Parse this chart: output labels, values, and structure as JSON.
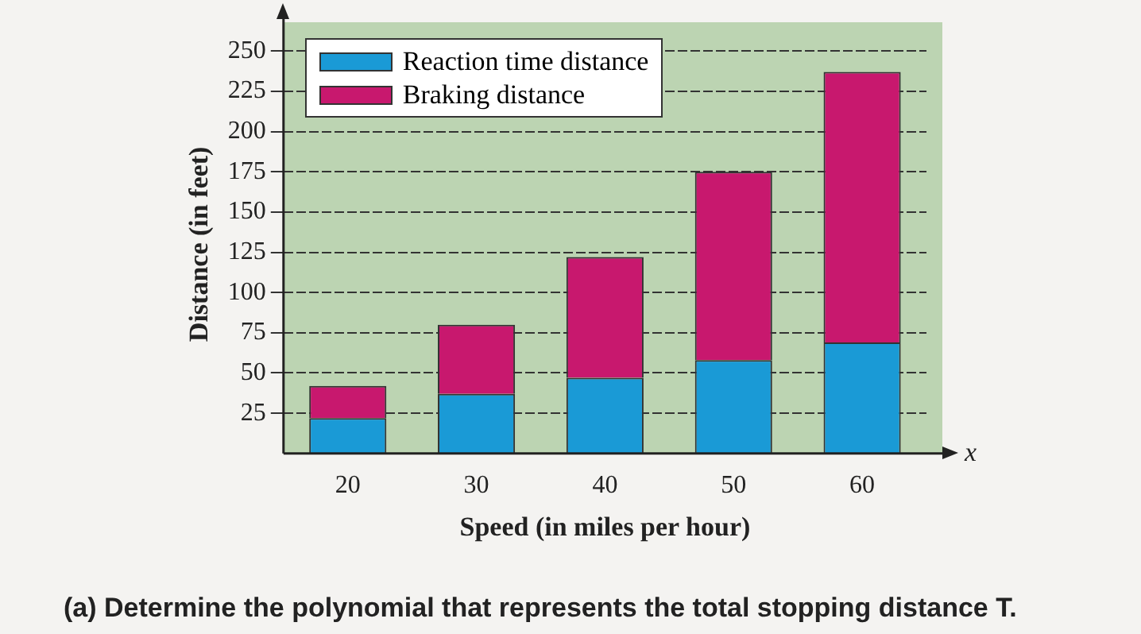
{
  "chart_data": {
    "type": "bar",
    "stacked": true,
    "xlabel": "Speed (in miles per hour)",
    "ylabel": "Distance (in feet)",
    "categories": [
      "20",
      "30",
      "40",
      "50",
      "60"
    ],
    "series": [
      {
        "name": "Reaction time distance",
        "color": "#1a9ad6",
        "values": [
          22,
          37,
          47,
          58,
          69
        ]
      },
      {
        "name": "Braking distance",
        "color": "#c8186e",
        "values": [
          20,
          43,
          75,
          117,
          168
        ]
      }
    ],
    "ylim": [
      0,
      260
    ],
    "yticks": [
      25,
      50,
      75,
      100,
      125,
      150,
      175,
      200,
      225,
      250
    ],
    "grid": "y",
    "legend": "top left",
    "annotations": [
      "x",
      "(a) Determine the polynomial that represents the total stopping distance T."
    ]
  }
}
